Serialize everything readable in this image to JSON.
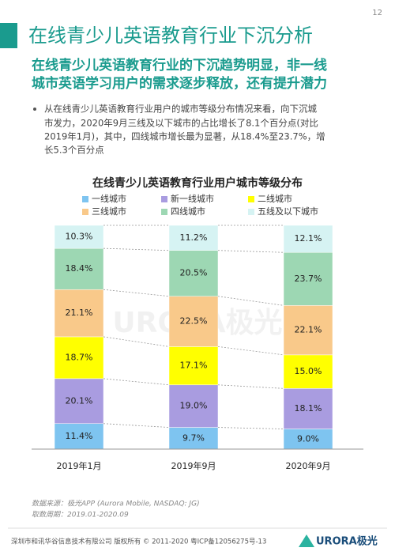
{
  "page_number": "12",
  "title": "在线青少儿英语教育行业下沉分析",
  "subtitle": [
    "在线青少儿英语教育行业的下沉趋势明显，非一线",
    "城市英语学习用户的需求逐步释放，还有提升潜力"
  ],
  "bullet": [
    "从在线青少儿英语教育行业用户的城市等级分布情况来看，向下沉城",
    "市发力，2020年9月三线及以下城市的占比增长了8.1个百分点(对比",
    "2019年1月)，其中，四线城市增长最为显著，从18.4%至23.7%，增",
    "长5.3个百分点"
  ],
  "source": [
    "数据来源：极光APP (Aurora Mobile, NASDAQ: JG)",
    "取数周期：2019.01-2020.09"
  ],
  "footer": "深圳市和讯华谷信息技术有限公司 版权所有 © 2011-2020 粤ICP备12056275号-13",
  "logo": "URORA极光",
  "chart_data": {
    "type": "stacked_bar",
    "title": "在线青少儿英语教育行业用户城市等级分布",
    "categories": [
      "2019年1月",
      "2019年9月",
      "2020年9月"
    ],
    "ylim": [
      0,
      100
    ],
    "series": [
      {
        "name": "一线城市",
        "color": "#7ec4f0",
        "values": [
          11.4,
          9.7,
          9.0
        ],
        "value_labels": [
          "11.4%",
          "9.7%",
          "9.0%"
        ]
      },
      {
        "name": "新一线城市",
        "color": "#a99ce0",
        "values": [
          20.1,
          19.0,
          18.1
        ],
        "value_labels": [
          "20.1%",
          "19.0%",
          "18.1%"
        ]
      },
      {
        "name": "二线城市",
        "color": "#ffff00",
        "values": [
          18.7,
          17.1,
          15.0
        ],
        "value_labels": [
          "18.7%",
          "17.1%",
          "15.0%"
        ]
      },
      {
        "name": "三线城市",
        "color": "#f9c98a",
        "values": [
          21.1,
          22.5,
          22.1
        ],
        "value_labels": [
          "21.1%",
          "22.5%",
          "22.1%"
        ]
      },
      {
        "name": "四线城市",
        "color": "#9dd7b3",
        "values": [
          18.4,
          20.5,
          23.7
        ],
        "value_labels": [
          "18.4%",
          "20.5%",
          "23.7%"
        ]
      },
      {
        "name": "五线及以下城市",
        "color": "#d6f3f3",
        "values": [
          10.3,
          11.2,
          12.1
        ],
        "value_labels": [
          "10.3%",
          "11.2%",
          "12.1%"
        ]
      }
    ]
  }
}
